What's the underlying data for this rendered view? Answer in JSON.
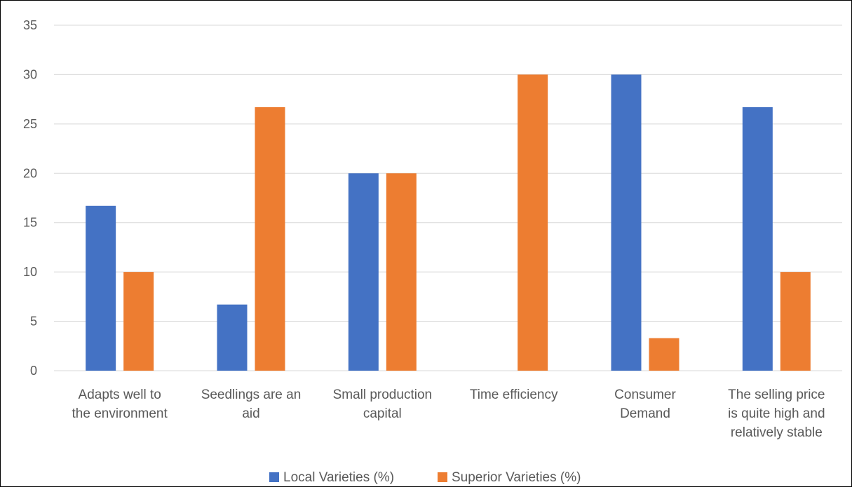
{
  "chart_data": {
    "type": "bar",
    "categories": [
      [
        "Adapts well to",
        "the environment"
      ],
      [
        "Seedlings are an",
        "aid"
      ],
      [
        "Small production",
        "capital"
      ],
      [
        "Time efficiency"
      ],
      [
        "Consumer",
        "Demand"
      ],
      [
        "The selling price",
        "is quite high and",
        "relatively stable"
      ]
    ],
    "series": [
      {
        "name": "Local Varieties (%)",
        "color": "#4472c4",
        "values": [
          16.7,
          6.7,
          20,
          0,
          30,
          26.7
        ]
      },
      {
        "name": "Superior Varieties (%)",
        "color": "#ed7d31",
        "values": [
          10,
          26.7,
          20,
          30,
          3.3,
          10
        ]
      }
    ],
    "ylim": [
      0,
      35
    ],
    "yticks": [
      0,
      5,
      10,
      15,
      20,
      25,
      30,
      35
    ],
    "grid": true,
    "legend_position": "bottom",
    "title": "",
    "xlabel": "",
    "ylabel": ""
  }
}
